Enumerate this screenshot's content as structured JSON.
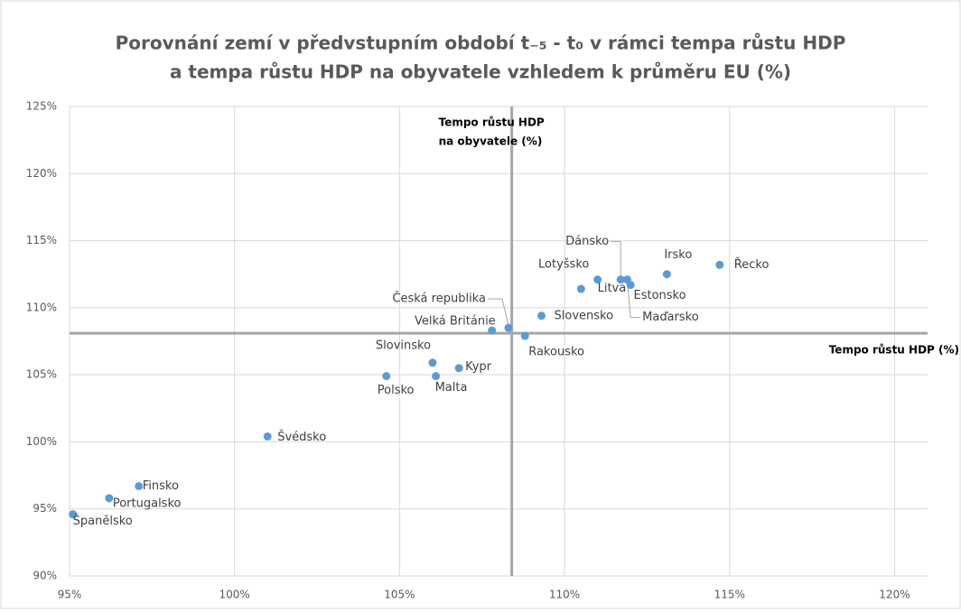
{
  "chart_data": {
    "type": "scatter",
    "title": [
      "Porovnání zemí v předvstupním období t₋₅ - t₀ v rámci tempa růstu HDP",
      "a tempa růstu HDP na obyvatele vzhledem k průměru EU (%)"
    ],
    "color": "#5b9bd5",
    "grid": true,
    "xlim": [
      95,
      121
    ],
    "ylim": [
      90,
      125
    ],
    "xticks": [
      {
        "value": 95,
        "label": "95%"
      },
      {
        "value": 100,
        "label": "100%"
      },
      {
        "value": 105,
        "label": "105%"
      },
      {
        "value": 110,
        "label": "110%"
      },
      {
        "value": 115,
        "label": "115%"
      },
      {
        "value": 120,
        "label": "120%"
      }
    ],
    "yticks": [
      {
        "value": 90,
        "label": "90%"
      },
      {
        "value": 95,
        "label": "95%"
      },
      {
        "value": 100,
        "label": "100%"
      },
      {
        "value": 105,
        "label": "105%"
      },
      {
        "value": 110,
        "label": "110%"
      },
      {
        "value": 115,
        "label": "115%"
      },
      {
        "value": 120,
        "label": "120%"
      },
      {
        "value": 125,
        "label": "125%"
      }
    ],
    "reference_lines": {
      "x": 108.4,
      "x_label": [
        "Tempo růstu HDP",
        "na obyvatele (%)"
      ],
      "y": 108.1,
      "y_label": "Tempo růstu HDP (%)"
    },
    "points": [
      {
        "name": "Španělsko",
        "x": 95.1,
        "y": 94.6
      },
      {
        "name": "Portugalsko",
        "x": 96.2,
        "y": 95.8
      },
      {
        "name": "Finsko",
        "x": 97.1,
        "y": 96.7
      },
      {
        "name": "Švédsko",
        "x": 101.0,
        "y": 100.4
      },
      {
        "name": "Polsko",
        "x": 104.6,
        "y": 104.9
      },
      {
        "name": "Slovinsko",
        "x": 106.0,
        "y": 105.9
      },
      {
        "name": "Malta",
        "x": 106.1,
        "y": 104.9
      },
      {
        "name": "Kypr",
        "x": 106.8,
        "y": 105.5
      },
      {
        "name": "Velká Británie",
        "x": 107.8,
        "y": 108.3
      },
      {
        "name": "Česká republika",
        "x": 108.3,
        "y": 108.5
      },
      {
        "name": "Rakousko",
        "x": 108.8,
        "y": 107.9
      },
      {
        "name": "Slovensko",
        "x": 109.3,
        "y": 109.4
      },
      {
        "name": "Lotyšsko",
        "x": 110.5,
        "y": 111.4
      },
      {
        "name": "Litva",
        "x": 111.0,
        "y": 112.1
      },
      {
        "name": "Dánsko",
        "x": 111.7,
        "y": 112.1
      },
      {
        "name": "Maďarsko",
        "x": 112.0,
        "y": 111.7
      },
      {
        "name": "Estonsko",
        "x": 111.9,
        "y": 112.1
      },
      {
        "name": "Irsko",
        "x": 113.1,
        "y": 112.5
      },
      {
        "name": "Řecko",
        "x": 114.7,
        "y": 113.2
      }
    ]
  }
}
